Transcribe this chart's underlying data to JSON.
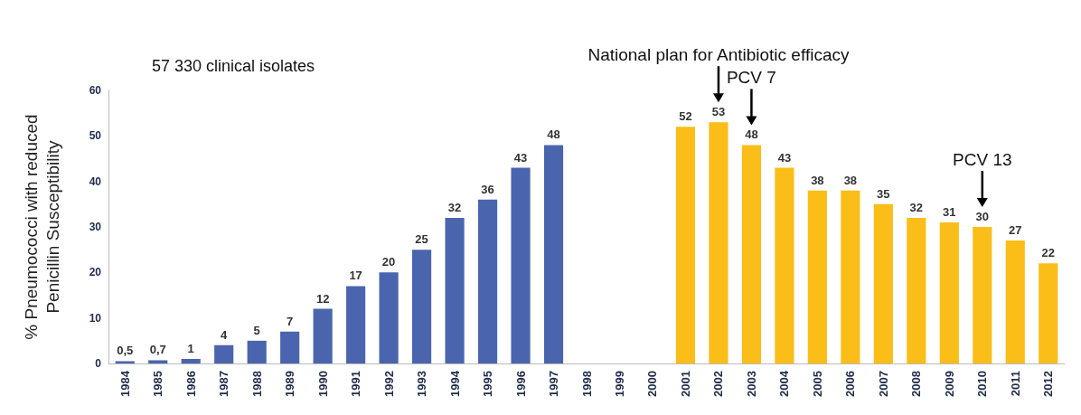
{
  "chart_data": {
    "type": "bar",
    "ylabel": "% Pneumococci with reduced Penicillin Susceptibility",
    "categories": [
      "1984",
      "1985",
      "1986",
      "1987",
      "1988",
      "1989",
      "1990",
      "1991",
      "1992",
      "1993",
      "1994",
      "1995",
      "1996",
      "1997",
      "1998",
      "1999",
      "2000",
      "2001",
      "2002",
      "2003",
      "2004",
      "2005",
      "2006",
      "2007",
      "2008",
      "2009",
      "2010",
      "2011",
      "2012"
    ],
    "values": [
      0.5,
      0.7,
      1,
      4,
      5,
      7,
      12,
      17,
      20,
      25,
      32,
      36,
      43,
      48,
      null,
      null,
      null,
      52,
      53,
      48,
      43,
      38,
      38,
      35,
      32,
      31,
      30,
      27,
      22
    ],
    "value_labels": [
      "0,5",
      "0,7",
      "1",
      "4",
      "5",
      "7",
      "12",
      "17",
      "20",
      "25",
      "32",
      "36",
      "43",
      "48",
      null,
      null,
      null,
      "52",
      "53",
      "48",
      "43",
      "38",
      "38",
      "35",
      "32",
      "31",
      "30",
      "27",
      "22"
    ],
    "colors": [
      "#4a65ad",
      "#4a65ad",
      "#4a65ad",
      "#4a65ad",
      "#4a65ad",
      "#4a65ad",
      "#4a65ad",
      "#4a65ad",
      "#4a65ad",
      "#4a65ad",
      "#4a65ad",
      "#4a65ad",
      "#4a65ad",
      "#4a65ad",
      null,
      null,
      null,
      "#fbbd17",
      "#fbbd17",
      "#fbbd17",
      "#fbbd17",
      "#fbbd17",
      "#fbbd17",
      "#fbbd17",
      "#fbbd17",
      "#fbbd17",
      "#fbbd17",
      "#fbbd17",
      "#fbbd17"
    ],
    "ylim": [
      0,
      60
    ],
    "yticks": [
      0,
      10,
      20,
      30,
      40,
      50,
      60
    ],
    "grid": false,
    "annotations": [
      "57 330 clinical isolates",
      {
        "text": "National plan for Antibiotic efficacy",
        "x": "2002"
      },
      {
        "text": "PCV 7",
        "x": "2003"
      },
      {
        "text": "PCV 13",
        "x": "2010"
      }
    ]
  }
}
